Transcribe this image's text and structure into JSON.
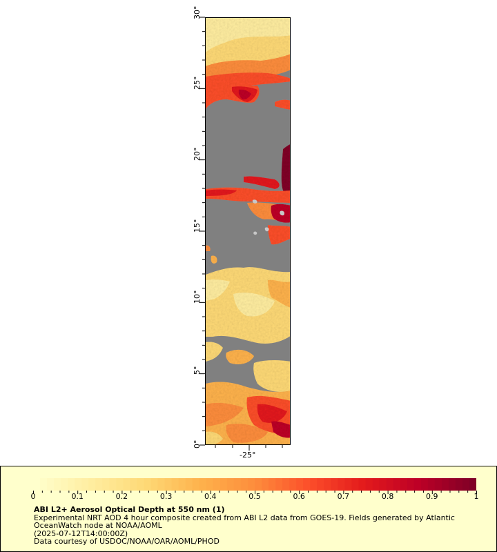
{
  "map": {
    "latitude_labels": [
      "0°",
      "5°",
      "10°",
      "15°",
      "20°",
      "25°",
      "30°"
    ],
    "longitude_labels": [
      "-25°"
    ],
    "colors": {
      "land_or_missing": "#808080",
      "low": "#ffffcc",
      "high": "#800026"
    }
  },
  "legend": {
    "colorbar_ticks": [
      "0",
      "0.1",
      "0.2",
      "0.3",
      "0.4",
      "0.5",
      "0.6",
      "0.7",
      "0.8",
      "0.9",
      "1"
    ],
    "colorbar_range": [
      0,
      1
    ],
    "colorbar_colors": [
      "#ffffcc",
      "#ffeda0",
      "#fed976",
      "#feb24c",
      "#fd8d3c",
      "#fc4e2a",
      "#e31a1c",
      "#bd0026",
      "#800026"
    ],
    "title": "ABI L2+ Aerosol Optical Depth at 550 nm (1)",
    "line1": "Experimental NRT AOD 4 hour composite created from ABI L2 data from GOES-19. Fields generated by Atlantic",
    "line2": "OceanWatch node at NOAA/AOML",
    "line3": "(2025-07-12T14:00:00Z)",
    "line4": "Data courtesy of USDOC/NOAA/OAR/AOML/PHOD"
  }
}
